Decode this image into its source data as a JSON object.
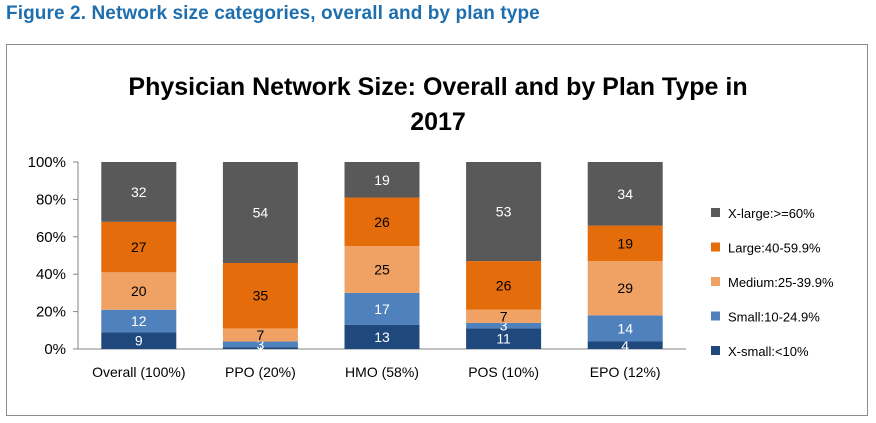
{
  "figure_caption": "Figure 2. Network size categories, overall and by plan type",
  "chart_data": {
    "type": "bar",
    "stacked": true,
    "title_lines": [
      "Physician Network Size: Overall and by Plan Type in",
      "2017"
    ],
    "categories": [
      "Overall (100%)",
      "PPO (20%)",
      "HMO (58%)",
      "POS (10%)",
      "EPO (12%)"
    ],
    "y_tick_labels": [
      "0%",
      "20%",
      "40%",
      "60%",
      "80%",
      "100%"
    ],
    "ylim": [
      0,
      100
    ],
    "legend_position": "right",
    "series": [
      {
        "name": "X-small:<10%",
        "color": "#1f497d",
        "label_color": "#ffffff",
        "values": [
          9,
          1,
          13,
          11,
          4
        ],
        "labels": [
          "9",
          "1",
          "13",
          "11",
          "4"
        ]
      },
      {
        "name": "Small:10-24.9%",
        "color": "#4f81bd",
        "label_color": "#ffffff",
        "values": [
          12,
          3,
          17,
          3,
          14
        ],
        "labels": [
          "12",
          "3",
          "17",
          "3",
          "14"
        ]
      },
      {
        "name": "Medium:25-39.9%",
        "color": "#f0a265",
        "label_color": "#000000",
        "values": [
          20,
          7,
          25,
          7,
          29
        ],
        "labels": [
          "20",
          "7",
          "25",
          "7",
          "29"
        ]
      },
      {
        "name": "Large:40-59.9%",
        "color": "#e46c0a",
        "label_color": "#000000",
        "values": [
          27,
          35,
          26,
          26,
          19
        ],
        "labels": [
          "27",
          "35",
          "26",
          "26",
          "19"
        ]
      },
      {
        "name": "X-large:>=60%",
        "color": "#595959",
        "label_color": "#ffffff",
        "values": [
          32,
          54,
          19,
          53,
          34
        ],
        "labels": [
          "32",
          "54",
          "19",
          "53",
          "34"
        ]
      }
    ]
  }
}
